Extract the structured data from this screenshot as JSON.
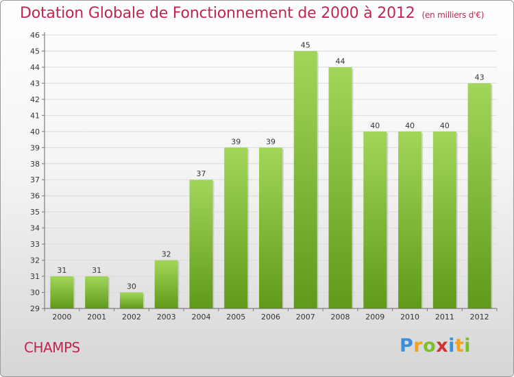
{
  "page": {
    "title": "Dotation Globale de Fonctionnement de 2000 à 2012",
    "unit": "(en milliers d'€)",
    "commune": "CHAMPS",
    "brand": "Proxiti",
    "brand_letter_colors": [
      "#3a8fd6",
      "#f2a21b",
      "#7cbf29",
      "#d23232",
      "#3a8fd6",
      "#f2a21b",
      "#7cbf29"
    ]
  },
  "chart_data": {
    "type": "bar",
    "categories": [
      "2000",
      "2001",
      "2002",
      "2003",
      "2004",
      "2005",
      "2006",
      "2007",
      "2008",
      "2009",
      "2010",
      "2011",
      "2012"
    ],
    "values": [
      31,
      31,
      30,
      32,
      37,
      39,
      39,
      45,
      44,
      40,
      40,
      40,
      43
    ],
    "ylim": [
      29,
      46
    ],
    "yticks": [
      29,
      30,
      31,
      32,
      33,
      34,
      35,
      36,
      37,
      38,
      39,
      40,
      41,
      42,
      43,
      44,
      45,
      46
    ],
    "grid": true,
    "bar_color": "#7dbb2e",
    "bar_color_top": "#a2d65a"
  }
}
